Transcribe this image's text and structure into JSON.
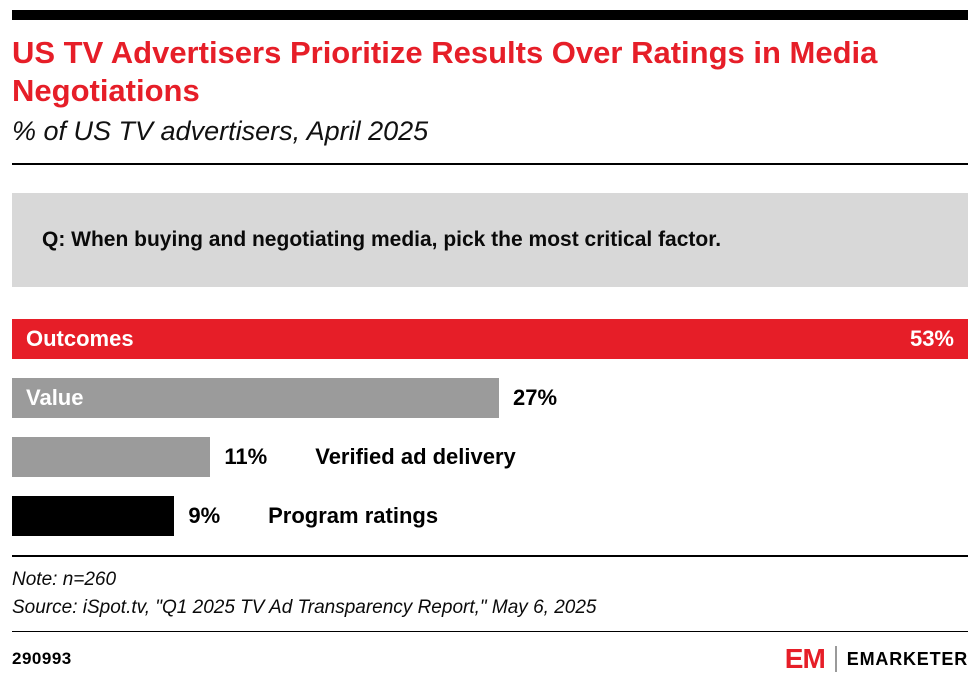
{
  "header": {
    "title": "US TV Advertisers Prioritize Results Over Ratings in Media Negotiations",
    "subtitle": "% of US TV advertisers, April 2025"
  },
  "question": "Q: When buying and negotiating media, pick the most critical factor.",
  "chart_data": {
    "type": "bar",
    "orientation": "horizontal",
    "title": "US TV Advertisers Prioritize Results Over Ratings in Media Negotiations",
    "xlabel": "",
    "ylabel": "",
    "xlim": [
      0,
      53
    ],
    "grid": false,
    "legend": "none",
    "categories": [
      "Outcomes",
      "Value",
      "Verified ad delivery",
      "Program ratings"
    ],
    "values": [
      53,
      27,
      11,
      9
    ],
    "bars": [
      {
        "label": "Outcomes",
        "value": 53,
        "pct": "53%",
        "color": "#e61e28",
        "label_position": "inside",
        "pct_position": "inside"
      },
      {
        "label": "Value",
        "value": 27,
        "pct": "27%",
        "color": "#9b9b9b",
        "label_position": "inside",
        "pct_position": "outside"
      },
      {
        "label": "Verified ad delivery",
        "value": 11,
        "pct": "11%",
        "color": "#9b9b9b",
        "label_position": "outside",
        "pct_position": "outside"
      },
      {
        "label": "Program ratings",
        "value": 9,
        "pct": "9%",
        "color": "#000000",
        "label_position": "outside",
        "pct_position": "outside"
      }
    ]
  },
  "notes": {
    "note": "Note: n=260",
    "source": "Source: iSpot.tv, \"Q1 2025 TV Ad Transparency Report,\" May 6, 2025"
  },
  "footer": {
    "chart_id": "290993",
    "logo_mark": "EM",
    "logo_word": "EMARKETER"
  },
  "colors": {
    "accent_red": "#e61e28",
    "bar_gray": "#9b9b9b",
    "bar_black": "#000000",
    "question_bg": "#d8d8d8"
  }
}
